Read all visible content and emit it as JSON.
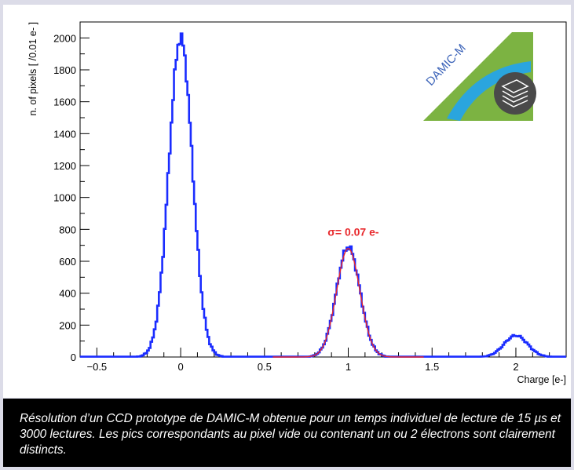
{
  "chart_data": {
    "type": "line",
    "xlabel": "Charge [e-]",
    "ylabel": "n. of pixels [ /0.01 e- ]",
    "xlim": [
      -0.6,
      2.3
    ],
    "ylim": [
      0,
      2100
    ],
    "x_ticks": [
      -0.5,
      0,
      0.5,
      1,
      1.5,
      2
    ],
    "x_tick_labels": [
      "−0.5",
      "0",
      "0.5",
      "1",
      "1.5",
      "2"
    ],
    "y_ticks": [
      0,
      200,
      400,
      600,
      800,
      1000,
      1200,
      1400,
      1600,
      1800,
      2000
    ],
    "y_tick_labels": [
      "0",
      "200",
      "400",
      "600",
      "800",
      "1000",
      "1200",
      "1400",
      "1600",
      "1800",
      "2000"
    ],
    "series": [
      {
        "color": "#1a2cff",
        "style": "step-histogram",
        "peaks": [
          {
            "x": 0.0,
            "height": 2000,
            "sigma": 0.07
          },
          {
            "x": 1.0,
            "height": 690,
            "sigma": 0.07
          },
          {
            "x": 2.0,
            "height": 135,
            "sigma": 0.07
          }
        ]
      },
      {
        "color": "#e8282c",
        "style": "fit-curve",
        "x_range": [
          0.55,
          1.45
        ],
        "peak": {
          "x": 1.0,
          "height": 680,
          "sigma": 0.07
        }
      }
    ],
    "annotations": [
      {
        "text": "σ= 0.07 e-",
        "x": 1.03,
        "y": 760,
        "color": "#e8282c"
      }
    ],
    "logo_text": "DAMIC-M",
    "grid": false
  },
  "caption": {
    "text": "Résolution d’un CCD prototype de DAMIC-M obtenue pour un temps individuel de lecture de 15 µs et 3000 lectures. Les pics correspondants au pixel vide ou contenant un ou 2 électrons sont clairement distincts."
  }
}
